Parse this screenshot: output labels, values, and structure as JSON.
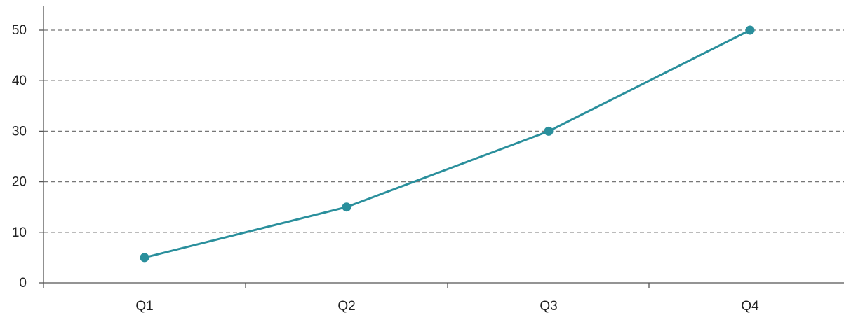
{
  "chart_data": {
    "type": "line",
    "categories": [
      "Q1",
      "Q2",
      "Q3",
      "Q4"
    ],
    "series": [
      {
        "values": [
          5,
          15,
          30,
          50
        ],
        "color": "#2a8f9c"
      }
    ],
    "title": "",
    "xlabel": "",
    "ylabel": "",
    "ylim": [
      0,
      50
    ],
    "yticks": [
      "0",
      "10",
      "20",
      "30",
      "40",
      "50"
    ],
    "grid": "horizontal-dashed",
    "legend": "none"
  }
}
